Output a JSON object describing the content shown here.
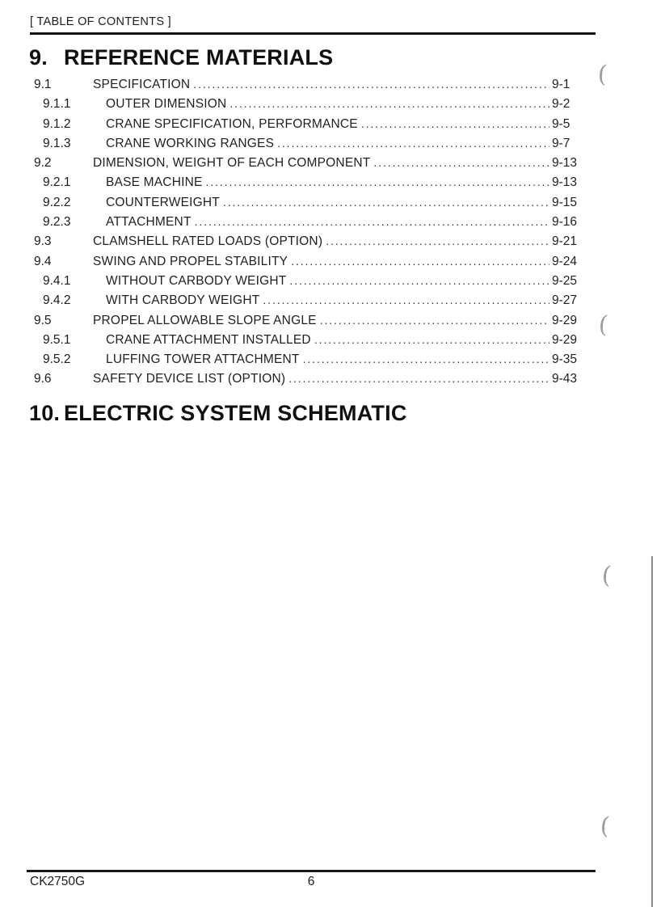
{
  "header": {
    "title": "[ TABLE OF CONTENTS ]"
  },
  "sections": {
    "reference_materials": {
      "number": "9.",
      "title": "REFERENCE MATERIALS"
    },
    "electric_system": {
      "number": "10.",
      "title": "ELECTRIC SYSTEM SCHEMATIC"
    }
  },
  "toc": {
    "entries": [
      {
        "number": "9.1",
        "title": "SPECIFICATION",
        "page": "9-1"
      },
      {
        "number": "9.1.1",
        "title": "OUTER DIMENSION",
        "page": "9-2"
      },
      {
        "number": "9.1.2",
        "title": "CRANE SPECIFICATION, PERFORMANCE",
        "page": "9-5"
      },
      {
        "number": "9.1.3",
        "title": "CRANE WORKING RANGES",
        "page": "9-7"
      },
      {
        "number": "9.2",
        "title": "DIMENSION, WEIGHT OF EACH COMPONENT",
        "page": "9-13"
      },
      {
        "number": "9.2.1",
        "title": "BASE MACHINE",
        "page": "9-13"
      },
      {
        "number": "9.2.2",
        "title": "COUNTERWEIGHT",
        "page": "9-15"
      },
      {
        "number": "9.2.3",
        "title": "ATTACHMENT",
        "page": "9-16"
      },
      {
        "number": "9.3",
        "title": "CLAMSHELL RATED LOADS (OPTION)",
        "page": "9-21"
      },
      {
        "number": "9.4",
        "title": "SWING AND PROPEL STABILITY",
        "page": "9-24"
      },
      {
        "number": "9.4.1",
        "title": "WITHOUT CARBODY WEIGHT",
        "page": "9-25"
      },
      {
        "number": "9.4.2",
        "title": "WITH CARBODY WEIGHT",
        "page": "9-27"
      },
      {
        "number": "9.5",
        "title": "PROPEL ALLOWABLE SLOPE ANGLE",
        "page": "9-29"
      },
      {
        "number": "9.5.1",
        "title": "CRANE ATTACHMENT INSTALLED",
        "page": "9-29"
      },
      {
        "number": "9.5.2",
        "title": "LUFFING TOWER ATTACHMENT",
        "page": "9-35"
      },
      {
        "number": "9.6",
        "title": "SAFETY DEVICE LIST (OPTION)",
        "page": "9-43"
      }
    ]
  },
  "footer": {
    "model": "CK2750G",
    "page_number": "6"
  }
}
